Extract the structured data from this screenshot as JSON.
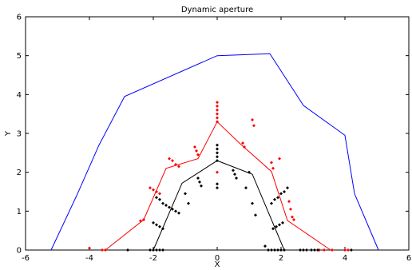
{
  "chart_data": {
    "type": "line",
    "title": "Dynamic aperture",
    "xlabel": "X",
    "ylabel": "Y",
    "xlim": [
      -6,
      6
    ],
    "ylim": [
      0,
      6
    ],
    "x_ticks": [
      "-6",
      "-4",
      "-2",
      "0",
      "2",
      "4",
      "6"
    ],
    "y_ticks": [
      "0",
      "1",
      "2",
      "3",
      "4",
      "5",
      "6"
    ],
    "grid": false,
    "legend": null,
    "series": [
      {
        "style": "line",
        "color": "#0000ff",
        "points": [
          [
            -5.2,
            0
          ],
          [
            -4.4,
            1.4
          ],
          [
            -3.7,
            2.7
          ],
          [
            -2.9,
            3.95
          ],
          [
            0.0,
            5.0
          ],
          [
            1.65,
            5.05
          ],
          [
            2.7,
            3.72
          ],
          [
            4.0,
            2.95
          ],
          [
            4.3,
            1.45
          ],
          [
            5.05,
            0
          ]
        ]
      },
      {
        "style": "line",
        "color": "#ff0000",
        "points": [
          [
            -3.5,
            0
          ],
          [
            -2.3,
            0.78
          ],
          [
            -1.6,
            2.1
          ],
          [
            -0.6,
            2.35
          ],
          [
            0.0,
            3.3
          ],
          [
            0.7,
            2.75
          ],
          [
            1.7,
            2.02
          ],
          [
            2.2,
            0.76
          ],
          [
            3.55,
            0
          ]
        ]
      },
      {
        "style": "line",
        "color": "#000000",
        "points": [
          [
            -2.0,
            0
          ],
          [
            -1.1,
            1.72
          ],
          [
            0.0,
            2.3
          ],
          [
            1.1,
            1.95
          ],
          [
            2.1,
            0
          ]
        ]
      },
      {
        "style": "dots",
        "color": "#ff0000",
        "points": [
          [
            -4.0,
            0.05
          ],
          [
            -3.6,
            0.0
          ],
          [
            -3.5,
            0.0
          ],
          [
            -2.4,
            0.75
          ],
          [
            -2.3,
            0.78
          ],
          [
            -2.1,
            1.6
          ],
          [
            -2.0,
            1.55
          ],
          [
            -1.9,
            1.5
          ],
          [
            -1.8,
            1.45
          ],
          [
            -1.5,
            2.35
          ],
          [
            -1.4,
            2.3
          ],
          [
            -1.3,
            2.2
          ],
          [
            -1.2,
            2.15
          ],
          [
            -0.7,
            2.65
          ],
          [
            -0.65,
            2.55
          ],
          [
            -0.6,
            2.45
          ],
          [
            0.0,
            3.8
          ],
          [
            0.0,
            3.7
          ],
          [
            0.0,
            3.6
          ],
          [
            0.0,
            3.5
          ],
          [
            0.0,
            3.4
          ],
          [
            0.0,
            3.3
          ],
          [
            0.0,
            2.0
          ],
          [
            0.8,
            2.75
          ],
          [
            0.85,
            2.65
          ],
          [
            1.1,
            3.35
          ],
          [
            1.15,
            3.2
          ],
          [
            1.7,
            2.25
          ],
          [
            1.75,
            2.1
          ],
          [
            1.95,
            2.35
          ],
          [
            2.25,
            1.25
          ],
          [
            2.3,
            1.05
          ],
          [
            2.35,
            0.85
          ],
          [
            2.4,
            0.78
          ],
          [
            3.2,
            0.0
          ],
          [
            3.35,
            0.0
          ],
          [
            3.6,
            0.0
          ],
          [
            4.0,
            0.0
          ],
          [
            4.1,
            0.0
          ]
        ]
      },
      {
        "style": "dots",
        "color": "#000000",
        "points": [
          [
            -2.8,
            0.0
          ],
          [
            -2.1,
            0.0
          ],
          [
            -2.0,
            0.0
          ],
          [
            -1.9,
            0.0
          ],
          [
            -1.8,
            0.0
          ],
          [
            -1.7,
            0.0
          ],
          [
            -2.0,
            0.7
          ],
          [
            -1.9,
            0.65
          ],
          [
            -1.8,
            0.6
          ],
          [
            -1.7,
            0.55
          ],
          [
            -1.9,
            1.35
          ],
          [
            -1.8,
            1.3
          ],
          [
            -1.7,
            1.2
          ],
          [
            -1.6,
            1.15
          ],
          [
            -1.5,
            1.1
          ],
          [
            -1.4,
            1.05
          ],
          [
            -1.3,
            1.0
          ],
          [
            -1.2,
            0.95
          ],
          [
            -1.0,
            1.45
          ],
          [
            -0.9,
            1.2
          ],
          [
            -0.6,
            1.85
          ],
          [
            -0.55,
            1.75
          ],
          [
            -0.5,
            1.65
          ],
          [
            0.0,
            2.7
          ],
          [
            0.0,
            2.6
          ],
          [
            0.0,
            2.5
          ],
          [
            0.0,
            2.4
          ],
          [
            0.0,
            2.3
          ],
          [
            0.0,
            1.7
          ],
          [
            0.0,
            1.6
          ],
          [
            0.5,
            2.05
          ],
          [
            0.55,
            1.95
          ],
          [
            0.6,
            1.85
          ],
          [
            1.0,
            2.0
          ],
          [
            0.9,
            1.6
          ],
          [
            1.1,
            1.2
          ],
          [
            1.2,
            0.9
          ],
          [
            1.5,
            0.1
          ],
          [
            1.6,
            0.0
          ],
          [
            1.7,
            0.0
          ],
          [
            1.8,
            0.0
          ],
          [
            1.9,
            0.0
          ],
          [
            2.0,
            0.0
          ],
          [
            2.1,
            0.0
          ],
          [
            1.7,
            1.2
          ],
          [
            1.8,
            1.3
          ],
          [
            1.9,
            1.35
          ],
          [
            2.0,
            1.45
          ],
          [
            2.1,
            1.5
          ],
          [
            2.2,
            1.6
          ],
          [
            1.75,
            0.55
          ],
          [
            1.85,
            0.6
          ],
          [
            1.95,
            0.65
          ],
          [
            2.05,
            0.7
          ],
          [
            2.6,
            0.0
          ],
          [
            2.7,
            0.0
          ],
          [
            2.8,
            0.0
          ],
          [
            2.95,
            0.0
          ],
          [
            3.05,
            0.0
          ],
          [
            3.15,
            0.0
          ],
          [
            4.2,
            0.0
          ]
        ]
      }
    ]
  }
}
